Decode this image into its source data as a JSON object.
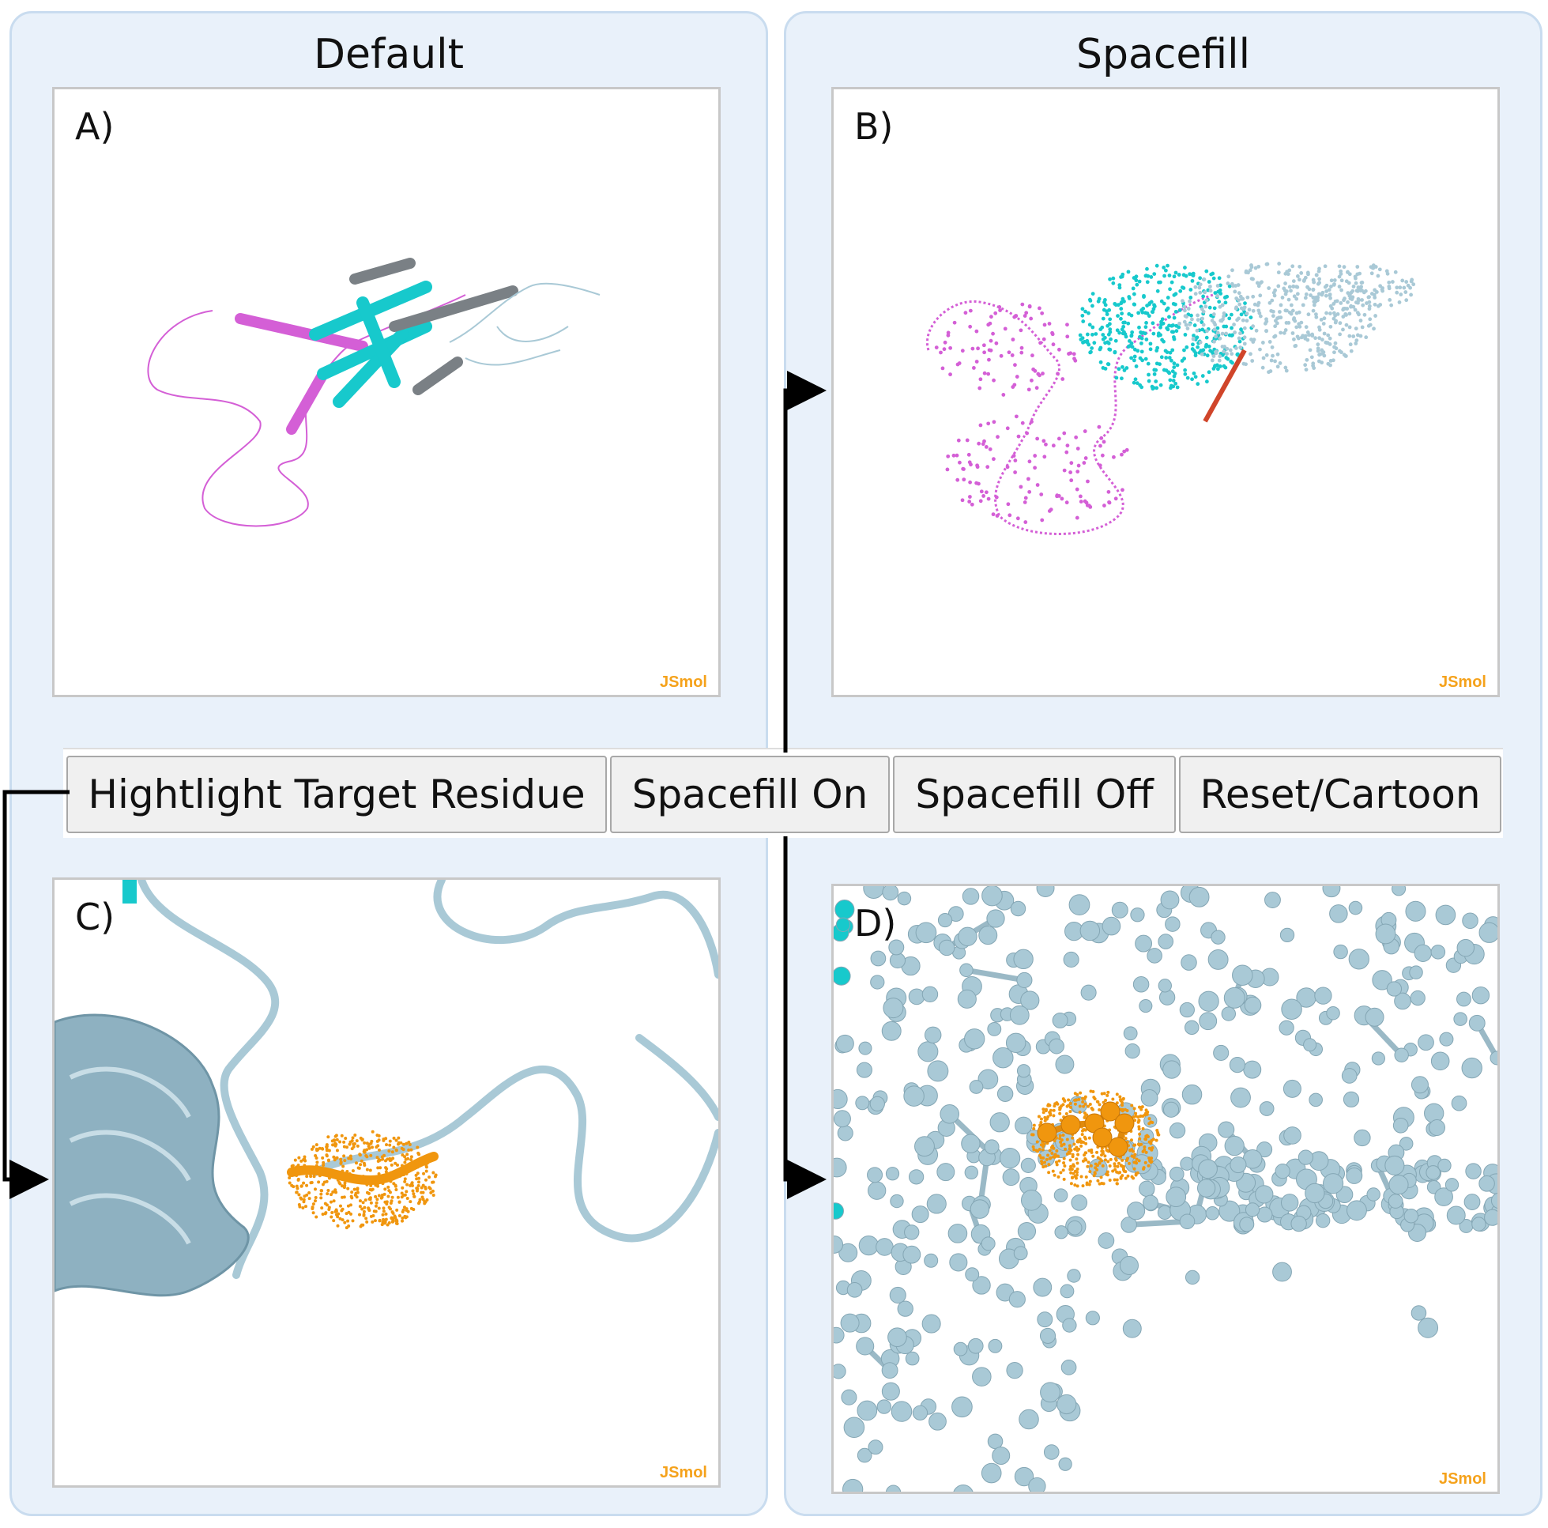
{
  "columns": {
    "left_title": "Default",
    "right_title": "Spacefill"
  },
  "panels": {
    "a": {
      "label": "A)",
      "watermark": "JSmol"
    },
    "b": {
      "label": "B)",
      "watermark": "JSmol"
    },
    "c": {
      "label": "C)",
      "watermark": "JSmol"
    },
    "d": {
      "label": "D)",
      "watermark": "JSmol"
    }
  },
  "buttons": {
    "highlight": "Hightlight Target Residue",
    "spacefill_on": "Spacefill On",
    "spacefill_off": "Spacefill Off",
    "reset": "Reset/Cartoon"
  },
  "colors": {
    "magenta": "#d45fd6",
    "cyan": "#17c9cc",
    "grey": "#8a9499",
    "lightblue": "#a9c9d6",
    "orange": "#f0960e",
    "watermark": "#f5a21b"
  }
}
